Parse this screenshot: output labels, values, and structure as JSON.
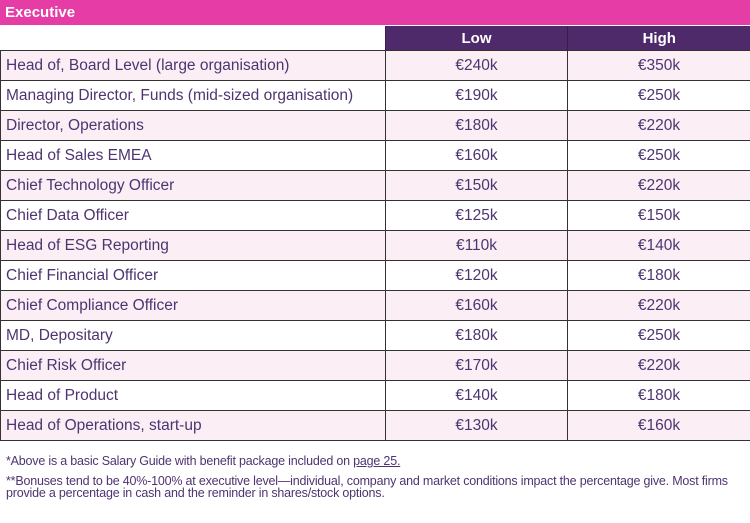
{
  "section_title": "Executive",
  "columns": [
    "Low",
    "High"
  ],
  "rows": [
    {
      "role": "Head of, Board Level (large organisation)",
      "low": "€240k",
      "high": "€350k"
    },
    {
      "role": "Managing Director, Funds (mid-sized organisation)",
      "low": "€190k",
      "high": "€250k"
    },
    {
      "role": "Director, Operations",
      "low": "€180k",
      "high": "€220k"
    },
    {
      "role": "Head of Sales EMEA",
      "low": "€160k",
      "high": "€250k"
    },
    {
      "role": "Chief Technology Officer",
      "low": "€150k",
      "high": "€220k"
    },
    {
      "role": "Chief Data Officer",
      "low": "€125k",
      "high": "€150k"
    },
    {
      "role": "Head of ESG Reporting",
      "low": "€110k",
      "high": "€140k"
    },
    {
      "role": "Chief Financial Officer",
      "low": "€120k",
      "high": "€180k"
    },
    {
      "role": "Chief Compliance Officer",
      "low": "€160k",
      "high": "€220k"
    },
    {
      "role": "MD, Depositary",
      "low": "€180k",
      "high": "€250k"
    },
    {
      "role": "Chief Risk Officer",
      "low": "€170k",
      "high": "€220k"
    },
    {
      "role": "Head of Product",
      "low": "€140k",
      "high": "€180k"
    },
    {
      "role": "Head of Operations, start-up",
      "low": "€130k",
      "high": "€160k"
    }
  ],
  "notes": {
    "note1_text": "*Above is a basic Salary Guide with benefit package included on ",
    "note1_link": "page 25.",
    "note2": "**Bonuses tend to be 40%-100% at executive level—individual, company and market conditions impact the percentage give. Most firms provide a percentage in cash and the reminder in shares/stock options."
  },
  "colors": {
    "title_bar": "#e63ca6",
    "header": "#4f2a6b",
    "row_alt": "#fbeef5",
    "text": "#4e3470"
  }
}
